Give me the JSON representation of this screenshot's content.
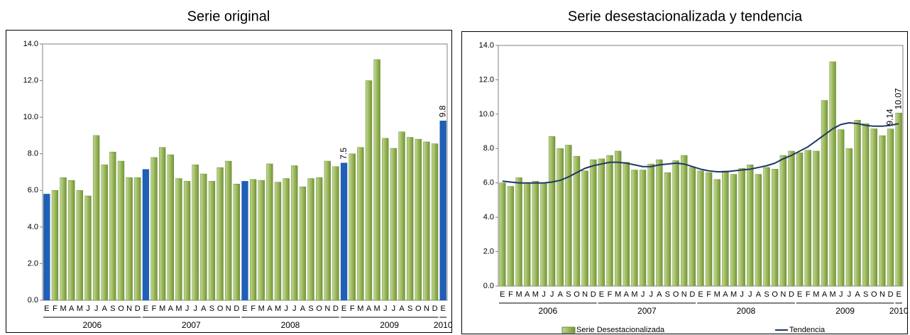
{
  "chart_data": [
    {
      "type": "bar",
      "title": "Serie original",
      "categories": [
        "E",
        "F",
        "M",
        "A",
        "M",
        "J",
        "J",
        "A",
        "S",
        "O",
        "N",
        "D",
        "E",
        "F",
        "M",
        "A",
        "M",
        "J",
        "J",
        "A",
        "S",
        "O",
        "N",
        "D",
        "E",
        "F",
        "M",
        "A",
        "M",
        "J",
        "J",
        "A",
        "S",
        "O",
        "N",
        "D",
        "E",
        "F",
        "M",
        "A",
        "M",
        "J",
        "J",
        "A",
        "S",
        "O",
        "N",
        "D",
        "E"
      ],
      "years": [
        "2006",
        "2007",
        "2008",
        "2009",
        "2010"
      ],
      "series": [
        {
          "color": "#9bbb59",
          "highlight_color": "#1f5fb5",
          "values": [
            5.8,
            6.0,
            6.7,
            6.55,
            6.0,
            5.7,
            9.0,
            7.4,
            8.1,
            7.6,
            6.7,
            6.7,
            7.15,
            7.8,
            8.35,
            7.95,
            6.65,
            6.5,
            7.4,
            6.9,
            6.5,
            7.25,
            7.6,
            6.35,
            6.5,
            6.6,
            6.55,
            7.45,
            6.45,
            6.65,
            7.35,
            6.2,
            6.65,
            6.7,
            7.6,
            7.3,
            7.5,
            8.0,
            8.35,
            12.0,
            13.15,
            8.85,
            8.3,
            9.2,
            8.9,
            8.8,
            8.65,
            8.55,
            9.8
          ],
          "value_labels": [
            null,
            null,
            null,
            null,
            null,
            null,
            null,
            null,
            null,
            null,
            null,
            null,
            null,
            null,
            null,
            null,
            null,
            null,
            null,
            null,
            null,
            null,
            null,
            null,
            null,
            null,
            null,
            null,
            null,
            null,
            null,
            null,
            null,
            null,
            null,
            null,
            "7.5",
            null,
            null,
            null,
            null,
            null,
            null,
            null,
            null,
            null,
            null,
            null,
            "9.8"
          ]
        }
      ],
      "ylim": [
        0,
        14
      ],
      "yticks": [
        {
          "value": 0,
          "label": "0.0"
        },
        {
          "value": 2,
          "label": "2.0"
        },
        {
          "value": 4,
          "label": "4.0"
        },
        {
          "value": 6,
          "label": "6.0"
        },
        {
          "value": 8,
          "label": "8.0"
        },
        {
          "value": 10,
          "label": "10.0"
        },
        {
          "value": 12,
          "label": "12.0"
        },
        {
          "value": 14,
          "label": "14.0"
        }
      ]
    },
    {
      "type": "bar",
      "title": "Serie desestacionalizada y tendencia",
      "categories": [
        "E",
        "F",
        "M",
        "A",
        "M",
        "J",
        "J",
        "A",
        "S",
        "O",
        "N",
        "D",
        "E",
        "F",
        "M",
        "A",
        "M",
        "J",
        "J",
        "A",
        "S",
        "O",
        "N",
        "D",
        "E",
        "F",
        "M",
        "A",
        "M",
        "J",
        "J",
        "A",
        "S",
        "O",
        "N",
        "D",
        "E",
        "F",
        "M",
        "A",
        "M",
        "J",
        "J",
        "A",
        "S",
        "O",
        "N",
        "D",
        "E"
      ],
      "years": [
        "2006",
        "2007",
        "2008",
        "2009",
        "2010"
      ],
      "legend": "bottom",
      "series": [
        {
          "name": "Serie Desestacionalizada",
          "type": "bar",
          "color": "#9bbb59",
          "values": [
            6.0,
            5.8,
            6.3,
            6.0,
            6.1,
            6.0,
            8.7,
            8.0,
            8.2,
            7.55,
            6.7,
            7.35,
            7.4,
            7.6,
            7.85,
            7.2,
            6.75,
            6.75,
            7.1,
            7.35,
            6.6,
            7.3,
            7.6,
            6.9,
            6.7,
            6.6,
            6.2,
            6.7,
            6.5,
            6.85,
            7.05,
            6.5,
            6.9,
            6.8,
            7.6,
            7.85,
            7.75,
            7.9,
            7.85,
            10.8,
            13.05,
            9.1,
            8.0,
            9.65,
            9.45,
            9.15,
            8.75,
            9.14,
            10.07
          ],
          "value_labels": [
            null,
            null,
            null,
            null,
            null,
            null,
            null,
            null,
            null,
            null,
            null,
            null,
            null,
            null,
            null,
            null,
            null,
            null,
            null,
            null,
            null,
            null,
            null,
            null,
            null,
            null,
            null,
            null,
            null,
            null,
            null,
            null,
            null,
            null,
            null,
            null,
            null,
            null,
            null,
            null,
            null,
            null,
            null,
            null,
            null,
            null,
            null,
            "9.14",
            "10.07"
          ]
        },
        {
          "name": "Tendencia",
          "type": "line",
          "color": "#1f3864",
          "values": [
            6.1,
            6.05,
            6.0,
            6.0,
            6.0,
            6.0,
            6.05,
            6.15,
            6.35,
            6.6,
            6.85,
            7.0,
            7.1,
            7.2,
            7.2,
            7.15,
            7.05,
            6.95,
            6.95,
            7.05,
            7.1,
            7.15,
            7.1,
            6.95,
            6.8,
            6.7,
            6.65,
            6.65,
            6.7,
            6.75,
            6.8,
            6.9,
            7.0,
            7.15,
            7.4,
            7.6,
            7.85,
            8.1,
            8.45,
            8.8,
            9.15,
            9.4,
            9.5,
            9.45,
            9.35,
            9.3,
            9.3,
            9.35,
            9.45
          ]
        }
      ],
      "ylim": [
        0,
        14
      ],
      "yticks": [
        {
          "value": 0,
          "label": "0.0"
        },
        {
          "value": 2,
          "label": "2.0"
        },
        {
          "value": 4,
          "label": "4.0"
        },
        {
          "value": 6,
          "label": "6.0"
        },
        {
          "value": 8,
          "label": "8.0"
        },
        {
          "value": 10,
          "label": "10.0"
        },
        {
          "value": 12,
          "label": "12.0"
        },
        {
          "value": 14,
          "label": "14.0"
        }
      ]
    }
  ]
}
